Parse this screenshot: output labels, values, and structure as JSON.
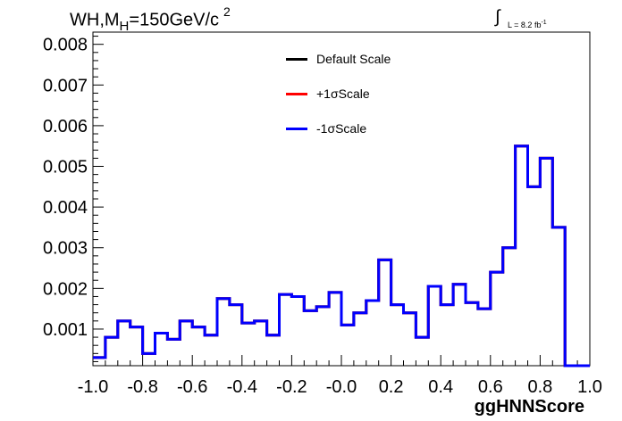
{
  "title": {
    "prefix": "WH,M",
    "subscript": "H",
    "main": "=150GeV/c",
    "superscript": "2"
  },
  "lumi": {
    "integral": "∫",
    "text": "L = 8.2 fb",
    "superscript": "-1"
  },
  "legend": [
    {
      "label": "Default Scale",
      "color": "#000000"
    },
    {
      "label": "+1σScale",
      "color": "#ff0000"
    },
    {
      "label": "-1σScale",
      "color": "#0000ff"
    }
  ],
  "chart_data": {
    "type": "histogram",
    "xlabel": "ggHNNScore",
    "ylabel": "",
    "xlim": [
      -1.0,
      1.0
    ],
    "ylim": [
      0.0001,
      0.0083
    ],
    "x_ticks": [
      "-1.0",
      "-0.8",
      "-0.6",
      "-0.4",
      "-0.2",
      "-0.0",
      "0.2",
      "0.4",
      "0.6",
      "0.8",
      "1.0"
    ],
    "x_tick_values": [
      -1.0,
      -0.8,
      -0.6,
      -0.4,
      -0.2,
      0.0,
      0.2,
      0.4,
      0.6,
      0.8,
      1.0
    ],
    "y_ticks": [
      "0.001",
      "0.002",
      "0.003",
      "0.004",
      "0.005",
      "0.006",
      "0.007",
      "0.008"
    ],
    "y_tick_values": [
      0.001,
      0.002,
      0.003,
      0.004,
      0.005,
      0.006,
      0.007,
      0.008
    ],
    "bin_edges": [
      -1.0,
      -0.95,
      -0.9,
      -0.85,
      -0.8,
      -0.75,
      -0.7,
      -0.65,
      -0.6,
      -0.55,
      -0.5,
      -0.45,
      -0.4,
      -0.35,
      -0.3,
      -0.25,
      -0.2,
      -0.15,
      -0.1,
      -0.05,
      0.0,
      0.05,
      0.1,
      0.15,
      0.2,
      0.25,
      0.3,
      0.35,
      0.4,
      0.45,
      0.5,
      0.55,
      0.6,
      0.65,
      0.7,
      0.75,
      0.8,
      0.85,
      0.9,
      0.95,
      1.0
    ],
    "series": [
      {
        "name": "Default Scale",
        "color": "#000000",
        "values": [
          0.0003,
          0.0008,
          0.0012,
          0.00105,
          0.0004,
          0.0009,
          0.00075,
          0.0012,
          0.00105,
          0.00085,
          0.00175,
          0.0016,
          0.00115,
          0.0012,
          0.00085,
          0.00185,
          0.0018,
          0.00145,
          0.00155,
          0.0019,
          0.0011,
          0.0014,
          0.0017,
          0.0027,
          0.0016,
          0.0014,
          0.0008,
          0.00205,
          0.0016,
          0.0021,
          0.00165,
          0.0015,
          0.0024,
          0.003,
          0.0055,
          0.0045,
          0.0052,
          0.0035,
          5e-05,
          5e-05
        ]
      },
      {
        "name": "+1σScale",
        "color": "#ff0000",
        "values": [
          0.0003,
          0.0008,
          0.0012,
          0.00105,
          0.0004,
          0.0009,
          0.00075,
          0.0012,
          0.00105,
          0.00085,
          0.00175,
          0.0016,
          0.00115,
          0.0012,
          0.00085,
          0.00185,
          0.0018,
          0.00145,
          0.00155,
          0.0019,
          0.0011,
          0.0014,
          0.0017,
          0.0027,
          0.0016,
          0.0014,
          0.0008,
          0.00205,
          0.0016,
          0.0021,
          0.00165,
          0.0015,
          0.0024,
          0.003,
          0.0055,
          0.0045,
          0.0052,
          0.0035,
          5e-05,
          5e-05
        ]
      },
      {
        "name": "-1σScale",
        "color": "#0000ff",
        "values": [
          0.0003,
          0.0008,
          0.0012,
          0.00105,
          0.0004,
          0.0009,
          0.00075,
          0.0012,
          0.00105,
          0.00085,
          0.00175,
          0.0016,
          0.00115,
          0.0012,
          0.00085,
          0.00185,
          0.0018,
          0.00145,
          0.00155,
          0.0019,
          0.0011,
          0.0014,
          0.0017,
          0.0027,
          0.0016,
          0.0014,
          0.0008,
          0.00205,
          0.0016,
          0.0021,
          0.00165,
          0.0015,
          0.0024,
          0.003,
          0.0055,
          0.0045,
          0.0052,
          0.0035,
          5e-05,
          5e-05
        ]
      }
    ]
  }
}
